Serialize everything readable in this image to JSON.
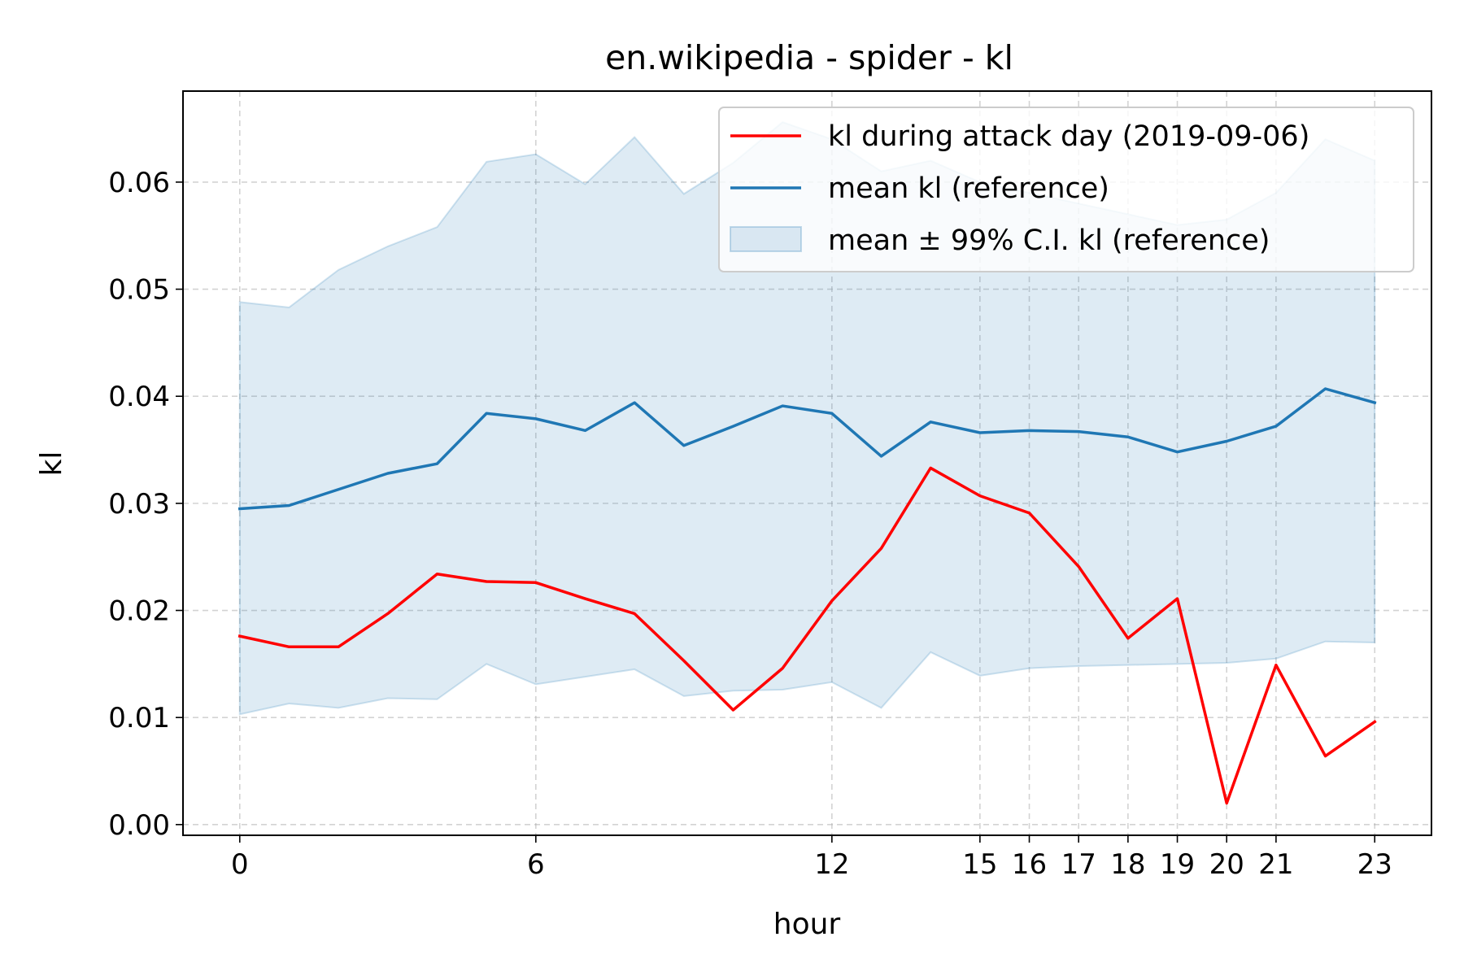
{
  "chart_data": {
    "type": "line",
    "title": "en.wikipedia - spider - kl",
    "xlabel": "hour",
    "ylabel": "kl",
    "xlim": [
      -1.15,
      24.15
    ],
    "ylim": [
      -0.001,
      0.0685
    ],
    "grid": true,
    "legend_position": "top-right",
    "x_ticks": [
      0,
      6,
      12,
      15,
      16,
      17,
      18,
      19,
      20,
      21,
      23
    ],
    "x_tick_labels": [
      "0",
      "6",
      "12",
      "15",
      "16",
      "17",
      "18",
      "19",
      "20",
      "21",
      "23"
    ],
    "y_ticks": [
      0.0,
      0.01,
      0.02,
      0.03,
      0.04,
      0.05,
      0.06
    ],
    "y_tick_labels": [
      "0.00",
      "0.01",
      "0.02",
      "0.03",
      "0.04",
      "0.05",
      "0.06"
    ],
    "x": [
      0,
      1,
      2,
      3,
      4,
      5,
      6,
      7,
      8,
      9,
      10,
      11,
      12,
      13,
      14,
      15,
      16,
      17,
      18,
      19,
      20,
      21,
      22,
      23
    ],
    "series": [
      {
        "name": "kl during attack day (2019-09-06)",
        "color": "#ff0000",
        "values": [
          0.0176,
          0.0166,
          0.0166,
          0.0197,
          0.0234,
          0.0227,
          0.0226,
          0.0211,
          0.0197,
          0.0153,
          0.0107,
          0.0146,
          0.0209,
          0.0258,
          0.0333,
          0.0307,
          0.0291,
          0.0241,
          0.0174,
          0.0211,
          0.002,
          0.0149,
          0.0064,
          0.0096
        ]
      },
      {
        "name": "mean kl (reference)",
        "color": "#1f77b4",
        "values": [
          0.0295,
          0.0298,
          0.0313,
          0.0328,
          0.0337,
          0.0384,
          0.0379,
          0.0368,
          0.0394,
          0.0354,
          0.0372,
          0.0391,
          0.0384,
          0.0344,
          0.0376,
          0.0366,
          0.0368,
          0.0367,
          0.0362,
          0.0348,
          0.0358,
          0.0372,
          0.0407,
          0.0394
        ]
      }
    ],
    "band": {
      "name": "mean ± 99% C.I. kl (reference)",
      "color": "#1f77b4",
      "lower": [
        0.0103,
        0.0113,
        0.0109,
        0.0118,
        0.0117,
        0.015,
        0.0131,
        0.0138,
        0.0145,
        0.012,
        0.0125,
        0.0126,
        0.0133,
        0.0109,
        0.0161,
        0.0139,
        0.0146,
        0.0148,
        0.0149,
        0.015,
        0.0151,
        0.0155,
        0.0171,
        0.017
      ],
      "upper": [
        0.0488,
        0.0483,
        0.0518,
        0.054,
        0.0558,
        0.0619,
        0.0626,
        0.0598,
        0.0642,
        0.0589,
        0.0618,
        0.0656,
        0.064,
        0.061,
        0.062,
        0.06,
        0.059,
        0.058,
        0.057,
        0.056,
        0.0565,
        0.059,
        0.064,
        0.062
      ]
    }
  }
}
